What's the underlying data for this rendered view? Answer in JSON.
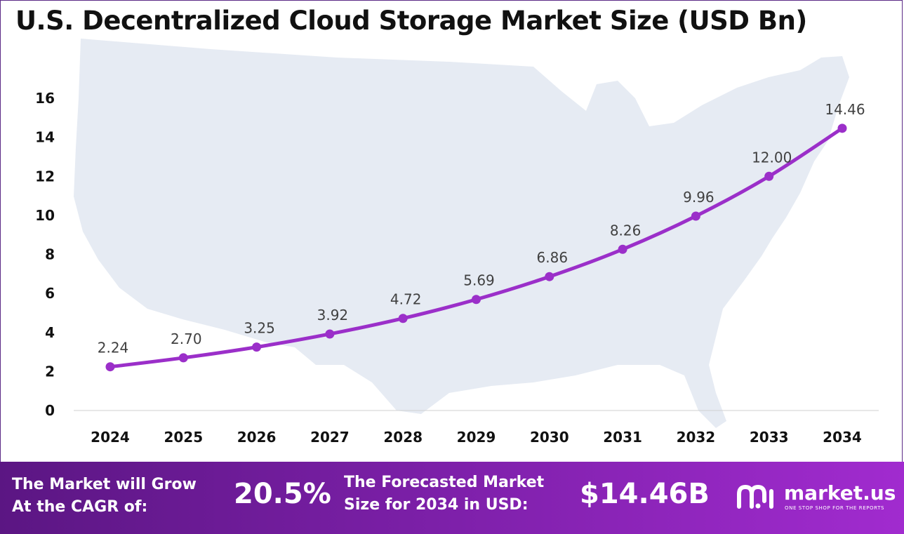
{
  "title": "U.S. Decentralized Cloud Storage Market Size (USD Bn)",
  "chart_data": {
    "type": "line",
    "x": [
      "2024",
      "2025",
      "2026",
      "2027",
      "2028",
      "2029",
      "2030",
      "2031",
      "2032",
      "2033",
      "2034"
    ],
    "values": [
      2.24,
      2.7,
      3.25,
      3.92,
      4.72,
      5.69,
      6.86,
      8.26,
      9.96,
      12.0,
      14.46
    ],
    "data_labels": [
      "2.24",
      "2.70",
      "3.25",
      "3.92",
      "4.72",
      "5.69",
      "6.86",
      "8.26",
      "9.96",
      "12.00",
      "14.46"
    ],
    "ylim": [
      0,
      16
    ],
    "yticks": [
      0,
      2,
      4,
      6,
      8,
      10,
      12,
      14,
      16
    ],
    "grid": false,
    "line_color": "#9b2fc9",
    "background_map_color": "#e6ebf3"
  },
  "footer": {
    "cagr_label_line1": "The Market will Grow",
    "cagr_label_line2": "At the CAGR of:",
    "cagr_value": "20.5%",
    "forecast_label_line1": "The Forecasted Market",
    "forecast_label_line2": "Size for 2034 in USD:",
    "forecast_value": "$14.46B",
    "brand_name": "market.us",
    "brand_tagline": "ONE STOP SHOP FOR THE REPORTS",
    "brand_logo_icon": "market-us-logo-icon"
  },
  "colors": {
    "footer_gradient_start": "#5b1683",
    "footer_gradient_end": "#a12bcf"
  }
}
